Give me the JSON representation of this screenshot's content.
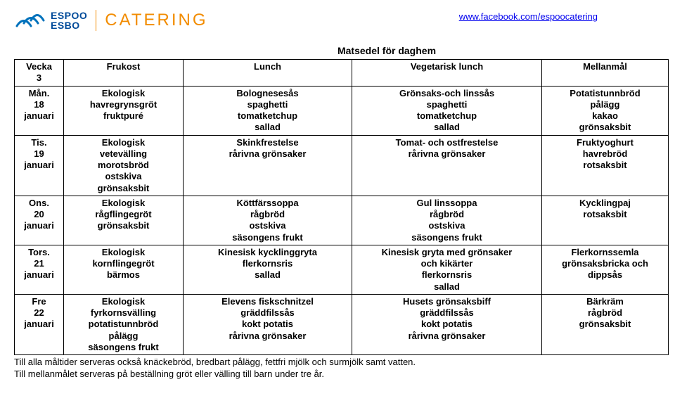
{
  "logo": {
    "text1": "ESPOO",
    "text2": "ESBO",
    "brand": "CATERING",
    "mark_color": "#0072bc",
    "text_color": "#004a99",
    "divider_color": "#f28c00",
    "brand_color": "#f28c00"
  },
  "link": {
    "url_text": "www.facebook.com/espoocatering"
  },
  "title": "Matsedel för daghem",
  "headers": {
    "c1": "Vecka\n3",
    "c2": "Frukost",
    "c3": "Lunch",
    "c4": "Vegetarisk lunch",
    "c5": "Mellanmål"
  },
  "rows": [
    {
      "day": "Mån.\n18\njanuari",
      "breakfast": "Ekologisk\nhavregrynsgröt\nfruktpuré",
      "lunch": "Bolognesesås\nspaghetti\ntomatketchup\nsallad",
      "veg": "Grönsaks-och linssås\nspaghetti\ntomatketchup\nsallad",
      "snack": "Potatistunnbröd\npålägg\nkakao\ngrönsaksbit"
    },
    {
      "day": "Tis.\n19\njanuari",
      "breakfast": "Ekologisk\nvetevälling\nmorotsbröd\nostskiva\ngrönsaksbit",
      "lunch": "Skinkfrestelse\nrårivna grönsaker",
      "veg": "Tomat- och ostfrestelse\nrårivna grönsaker",
      "snack": "Fruktyoghurt\nhavrebröd\nrotsaksbit"
    },
    {
      "day": "Ons.\n20\njanuari",
      "breakfast": "Ekologisk\nrågflingegröt\ngrönsaksbit",
      "lunch": "Köttfärssoppa\nrågbröd\nostskiva\nsäsongens frukt",
      "veg": "Gul linssoppa\nrågbröd\nostskiva\nsäsongens frukt",
      "snack": "Kycklingpaj\nrotsaksbit"
    },
    {
      "day": "Tors.\n21\njanuari",
      "breakfast": "Ekologisk\nkornflingegröt\nbärmos",
      "lunch": "Kinesisk kycklinggryta\nflerkornsris\nsallad",
      "veg": "Kinesisk gryta med grönsaker\noch kikärter\nflerkornsris\nsallad",
      "snack": "Flerkornssemla\ngrönsaksbricka och\ndippsås"
    },
    {
      "day": "Fre\n22\njanuari",
      "breakfast": "Ekologisk\nfyrkornsvälling\npotatistunnbröd\npålägg\nsäsongens frukt",
      "lunch": "Elevens fiskschnitzel\ngräddfilssås\nkokt potatis\nrårivna grönsaker",
      "veg": "Husets grönsaksbiff\ngräddfilssås\nkokt potatis\nrårivna grönsaker",
      "snack": "Bärkräm\nrågbröd\ngrönsaksbit"
    }
  ],
  "footer": {
    "line1": "Till alla måltider serveras också knäckebröd, bredbart pålägg, fettfri mjölk och surmjölk samt vatten.",
    "line2": "Till mellanmålet serveras på beställning gröt eller välling till barn under tre år."
  }
}
